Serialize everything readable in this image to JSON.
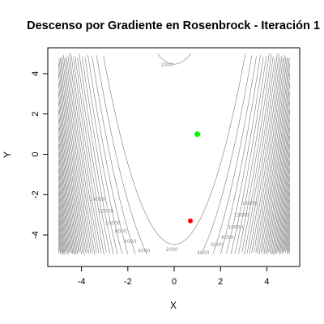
{
  "chart_data": {
    "type": "contour",
    "title": "Descenso por Gradiente en Rosenbrock - Iteración 1",
    "xlabel": "X",
    "ylabel": "Y",
    "xlim": [
      -5.2,
      5.2
    ],
    "ylim": [
      -5.4,
      5.3
    ],
    "x_ticks": [
      -4,
      -2,
      0,
      2,
      4
    ],
    "y_ticks": [
      -4,
      -2,
      0,
      2,
      4
    ],
    "x_tick_labels": [
      "-4",
      "-2",
      "0",
      "2",
      "4"
    ],
    "y_tick_labels": [
      "-4",
      "-2",
      "0",
      "2",
      "4"
    ],
    "function": "rosenbrock",
    "contour_levels": [
      2000,
      4000,
      6000,
      8000,
      10000,
      12000,
      14000,
      16000,
      18000,
      20000,
      22000,
      24000,
      26000,
      28000,
      30000,
      32000,
      34000,
      36000,
      38000,
      40000,
      42000,
      44000,
      46000,
      48000,
      50000,
      52000,
      54000,
      56000,
      58000,
      60000,
      62000,
      64000,
      66000,
      68000,
      70000,
      72000,
      74000,
      76000,
      78000,
      80000,
      82000,
      84000,
      86000,
      88000,
      90000,
      92000,
      94000,
      96000,
      98000,
      100000
    ],
    "contour_label_values": [
      {
        "text": "2000",
        "x": -0.3,
        "y": 4.35
      },
      {
        "text": "2000",
        "x": -0.1,
        "y": -4.8
      },
      {
        "text": "4000",
        "x": 1.25,
        "y": -4.95
      },
      {
        "text": "4000",
        "x": -1.3,
        "y": -4.85
      },
      {
        "text": "6000",
        "x": 1.85,
        "y": -4.55
      },
      {
        "text": "6000",
        "x": -1.9,
        "y": -4.4
      },
      {
        "text": "8000",
        "x": 2.3,
        "y": -4.2
      },
      {
        "text": "8000",
        "x": -2.3,
        "y": -3.9
      },
      {
        "text": "10000",
        "x": 2.65,
        "y": -3.7
      },
      {
        "text": "10000",
        "x": -2.65,
        "y": -3.5
      },
      {
        "text": "12000",
        "x": 2.9,
        "y": -3.1
      },
      {
        "text": "12000",
        "x": -2.95,
        "y": -2.9
      },
      {
        "text": "14000",
        "x": 3.25,
        "y": -2.5
      },
      {
        "text": "14000",
        "x": -3.3,
        "y": -2.3
      }
    ],
    "points": [
      {
        "name": "current",
        "x": 0.7,
        "y": -3.3,
        "color": "#ff0000"
      },
      {
        "name": "minimum",
        "x": 1.0,
        "y": 1.0,
        "color": "#00ff00"
      }
    ],
    "colors": {
      "contour": "#7a7a7a",
      "axis": "#000000"
    }
  }
}
